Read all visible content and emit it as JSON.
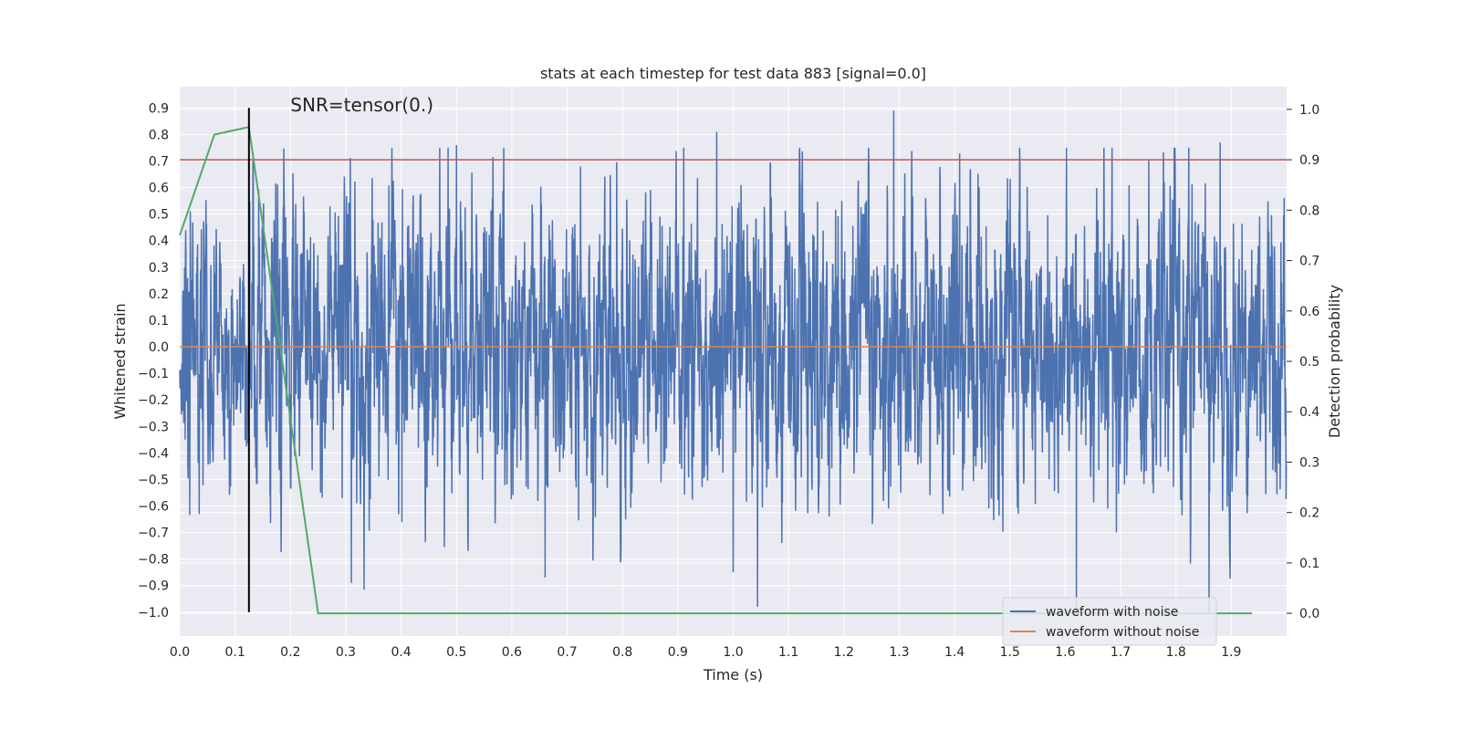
{
  "chart_data": {
    "type": "line",
    "title": "stats at each timestep for test data 883 [signal=0.0]",
    "xlabel": "Time (s)",
    "ylabel": "Whitened strain",
    "ylabel_right": "Detection probability",
    "xlim": [
      0.0,
      2.0
    ],
    "ylim": [
      -1.09,
      0.98
    ],
    "ylim_right": [
      -0.045,
      1.045
    ],
    "xticks": [
      "0.0",
      "0.1",
      "0.2",
      "0.3",
      "0.4",
      "0.5",
      "0.6",
      "0.7",
      "0.8",
      "0.9",
      "1.0",
      "1.1",
      "1.2",
      "1.3",
      "1.4",
      "1.5",
      "1.6",
      "1.7",
      "1.8",
      "1.9"
    ],
    "yticks": [
      "0.9",
      "0.8",
      "0.7",
      "0.6",
      "0.5",
      "0.4",
      "0.3",
      "0.2",
      "0.1",
      "0.0",
      "-0.1",
      "-0.2",
      "-0.3",
      "-0.4",
      "-0.5",
      "-0.6",
      "-0.7",
      "-0.8",
      "-0.9",
      "-1.0"
    ],
    "yticks_right": [
      "1.0",
      "0.9",
      "0.8",
      "0.7",
      "0.6",
      "0.5",
      "0.4",
      "0.3",
      "0.2",
      "0.1",
      "0.0"
    ],
    "annotation": "SNR=tensor(0.)",
    "series": [
      {
        "name": "waveform with noise",
        "color": "#4c72b0",
        "axis": "left",
        "sample_rate": 2048,
        "amplitude_std": 0.27,
        "spikes": [
          {
            "x": 0.5,
            "y": 0.76
          },
          {
            "x": 0.97,
            "y": 0.81
          },
          {
            "x": 1.29,
            "y": 0.89
          },
          {
            "x": 1.88,
            "y": 0.77
          },
          {
            "x": 1.62,
            "y": -1.01
          },
          {
            "x": 1.86,
            "y": -1.0
          },
          {
            "x": 0.31,
            "y": -0.89
          },
          {
            "x": 1.0,
            "y": -0.85
          },
          {
            "x": 0.66,
            "y": -0.87
          }
        ]
      },
      {
        "name": "waveform without noise",
        "color": "#dd8452",
        "axis": "left",
        "value": 0.0
      },
      {
        "name": "detection probability",
        "color": "#55a868",
        "axis": "right",
        "x": [
          0.0,
          0.0625,
          0.125,
          0.25,
          1.9375
        ],
        "y": [
          0.75,
          0.95,
          0.965,
          0.0,
          0.0
        ]
      }
    ],
    "threshold": {
      "value": 0.9,
      "axis": "right",
      "color": "#c44e52"
    },
    "marker_line": {
      "x": 0.125,
      "y": [
        -1.0,
        0.9
      ],
      "color": "#000000"
    },
    "legend": {
      "position": "lower-right",
      "entries": [
        "waveform with noise",
        "waveform without noise"
      ]
    }
  }
}
